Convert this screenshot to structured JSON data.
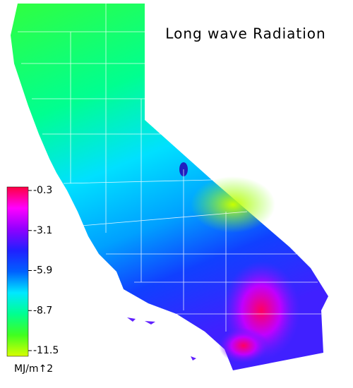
{
  "title": "Long wave Radiation",
  "colorbar": {
    "range": [
      -11.5,
      -0.3
    ],
    "ticks": [
      -0.3,
      -3.1,
      -5.9,
      -8.7,
      -11.5
    ],
    "unit": "MJ/m↑2",
    "colors": [
      "#d8ff00",
      "#40ff20",
      "#00ff90",
      "#00e8ff",
      "#0060ff",
      "#2020ff",
      "#9000ff",
      "#ff00ff",
      "#ff0040"
    ]
  }
}
